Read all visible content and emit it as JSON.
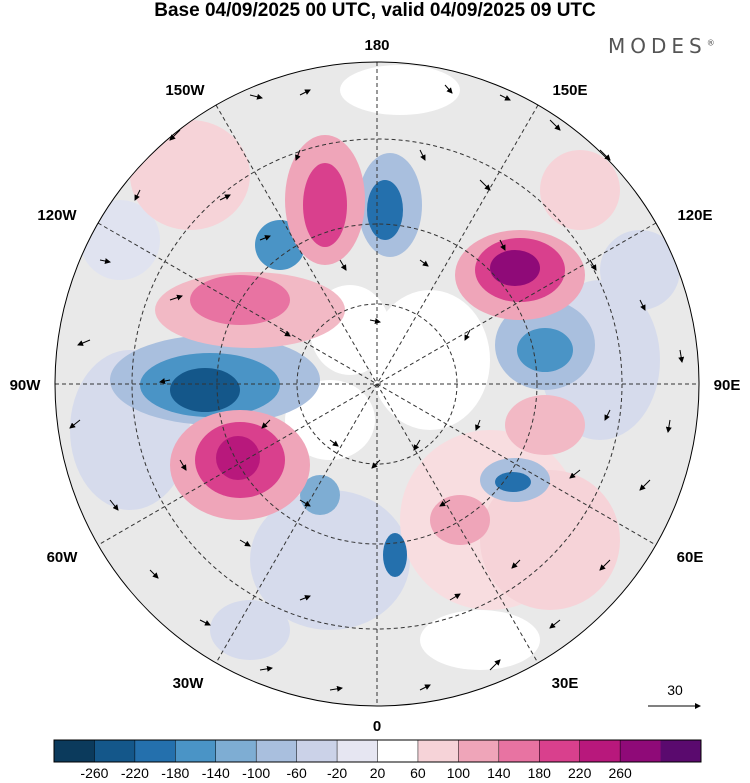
{
  "title": "Base 04/09/2025 00 UTC, valid 04/09/2025 09 UTC",
  "brand": "MODES",
  "brand_mark": "®",
  "longitude_labels": {
    "top": "180",
    "top_left": "150W",
    "top_right": "150E",
    "upper_left": "120W",
    "upper_right": "120E",
    "left": "90W",
    "right": "90E",
    "lower_left": "60W",
    "lower_right": "60E",
    "bottom_left": "30W",
    "bottom_right": "30E",
    "bottom": "0"
  },
  "reference_vector": {
    "label": "30",
    "icon": "arrow-right-icon"
  },
  "colorbar": {
    "ticks": [
      "-260",
      "-220",
      "-180",
      "-140",
      "-100",
      "-60",
      "-20",
      "20",
      "60",
      "100",
      "140",
      "180",
      "220",
      "260"
    ],
    "colors": [
      "#0b3a5c",
      "#14578a",
      "#2470ad",
      "#4a94c6",
      "#7eadd3",
      "#a9bfde",
      "#cbd2e8",
      "#e6e6f2",
      "#ffffff",
      "#f6d3d8",
      "#efa5b9",
      "#e873a2",
      "#d9408d",
      "#b8187c",
      "#8f0a78",
      "#5a0a6e"
    ]
  },
  "map_colors": {
    "land_gray": "#ececec",
    "grid": "#333333",
    "coast": "#555555"
  }
}
